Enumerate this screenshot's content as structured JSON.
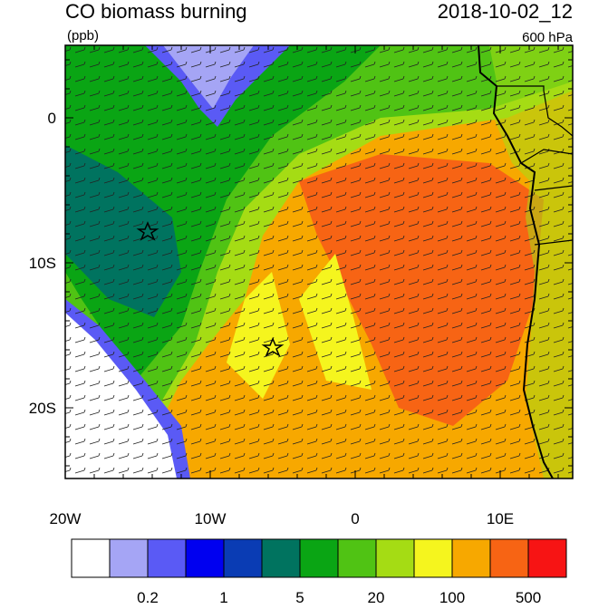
{
  "header": {
    "title": "CO biomass burning",
    "units": "(ppb)",
    "date": "2018-10-02_12",
    "level": "600 hPa"
  },
  "map": {
    "lon_labels": [
      "20W",
      "10W",
      "0",
      "10E"
    ],
    "lat_labels": [
      "0",
      "10S",
      "20S"
    ]
  },
  "colorbar": {
    "colors": [
      "#ffffff",
      "#a5a5f5",
      "#5a5af5",
      "#0000f0",
      "#0a3cb4",
      "#00735f",
      "#0aa514",
      "#50c314",
      "#a5dc14",
      "#f5f51e",
      "#f7a800",
      "#f76414",
      "#f71414"
    ],
    "labels": [
      "0.2",
      "1",
      "5",
      "20",
      "100",
      "500"
    ]
  }
}
